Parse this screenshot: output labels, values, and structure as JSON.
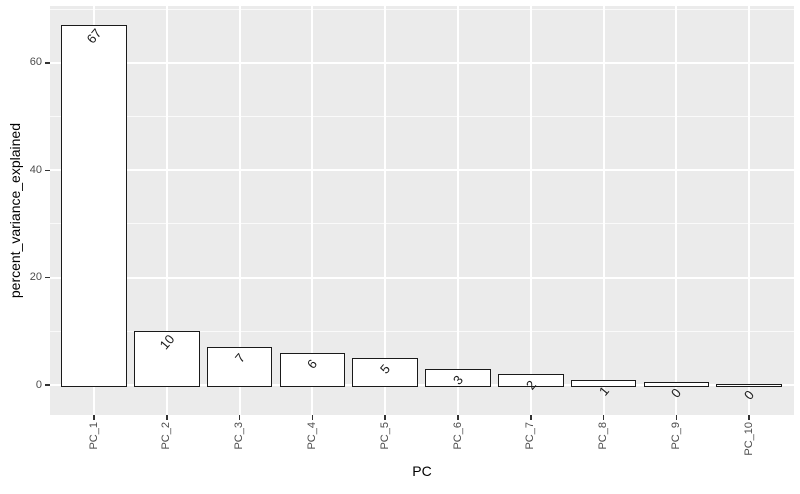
{
  "figure": {
    "background": "#FFFFFF",
    "panel_background": "#EBEBEB",
    "grid_major_color": "#FFFFFF",
    "grid_minor_color": "rgba(255,255,255,0.75)",
    "bar_fill": "#FFFFFF",
    "bar_stroke": "#1A1A1A",
    "axis_text_color": "#4D4D4D",
    "axis_title_color": "#000000",
    "tick_mark_color": "#333333"
  },
  "chart_data": {
    "type": "bar",
    "title": "",
    "xlabel": "PC",
    "ylabel": "percent_variance_explained",
    "categories": [
      "PC_1",
      "PC_2",
      "PC_3",
      "PC_4",
      "PC_5",
      "PC_6",
      "PC_7",
      "PC_8",
      "PC_9",
      "PC_10"
    ],
    "values": [
      67,
      10,
      7,
      6,
      5,
      3,
      2,
      1,
      0.5,
      0.2
    ],
    "bar_labels": [
      "67",
      "10",
      "7",
      "6",
      "5",
      "3",
      "2",
      "1",
      "0",
      "0"
    ],
    "y_ticks": [
      0,
      20,
      40,
      60
    ],
    "y_minor_ticks": [
      10,
      30,
      50,
      70
    ],
    "ylim": [
      -3.5,
      70.5
    ],
    "grid": true,
    "legend_position": "none",
    "bar_label_rotation_deg": -50,
    "x_tick_label_rotation_deg": 90
  }
}
